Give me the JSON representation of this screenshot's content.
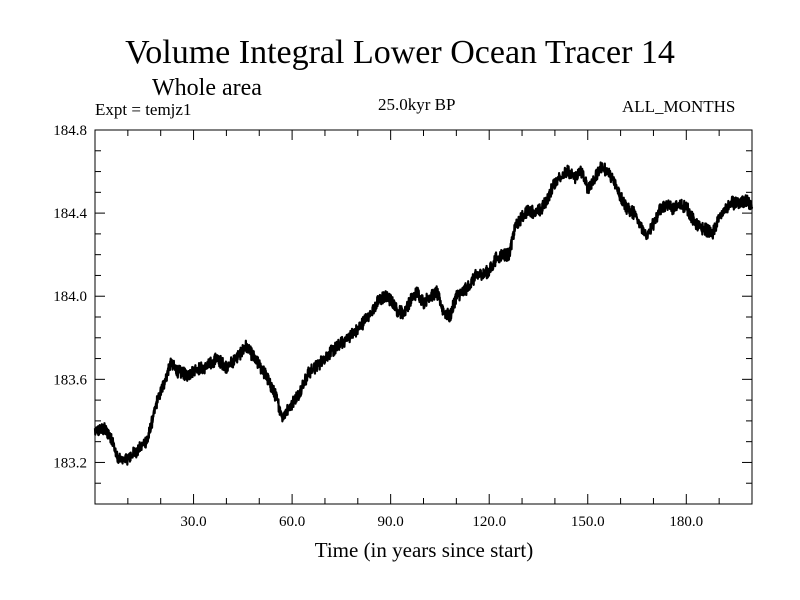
{
  "chart_data": {
    "type": "line",
    "title": "Volume Integral Lower Ocean Tracer 14",
    "subtitle": "Whole area",
    "expt_label": "Expt = temjz1",
    "period_label": "25.0kyr BP",
    "months_label": "ALL_MONTHS",
    "xlabel": "Time (in years since start)",
    "ylabel": "",
    "xlim": [
      0,
      200
    ],
    "ylim": [
      183.0,
      184.8
    ],
    "xticks": [
      30,
      60,
      90,
      120,
      150,
      180
    ],
    "xtick_labels": [
      "30.0",
      "60.0",
      "90.0",
      "120.0",
      "150.0",
      "180.0"
    ],
    "yticks": [
      183.2,
      183.6,
      184.0,
      184.4,
      184.8
    ],
    "ytick_labels": [
      "183.2",
      "183.6",
      "184.0",
      "184.4",
      "184.8"
    ],
    "grid": false,
    "series": [
      {
        "name": "tracer14",
        "x": [
          0,
          3,
          5,
          7,
          10,
          13,
          16,
          19,
          21,
          23,
          25,
          28,
          31,
          34,
          37,
          40,
          43,
          46,
          49,
          52,
          55,
          57,
          59,
          62,
          65,
          68,
          71,
          74,
          77,
          80,
          83,
          86,
          88,
          90,
          92,
          94,
          96,
          98,
          100,
          102,
          104,
          106,
          108,
          110,
          112,
          114,
          116,
          118,
          120,
          122,
          124,
          126,
          128,
          130,
          132,
          134,
          136,
          138,
          140,
          142,
          144,
          146,
          148,
          150,
          152,
          154,
          156,
          158,
          160,
          162,
          164,
          166,
          168,
          170,
          172,
          174,
          176,
          178,
          180,
          182,
          184,
          186,
          188,
          190,
          192,
          194,
          196,
          198,
          200
        ],
        "values": [
          183.35,
          183.36,
          183.32,
          183.21,
          183.22,
          183.26,
          183.31,
          183.5,
          183.58,
          183.68,
          183.64,
          183.62,
          183.65,
          183.66,
          183.7,
          183.66,
          183.7,
          183.76,
          183.69,
          183.62,
          183.52,
          183.42,
          183.46,
          183.53,
          183.63,
          183.67,
          183.72,
          183.76,
          183.8,
          183.84,
          183.9,
          183.97,
          184.0,
          183.98,
          183.93,
          183.92,
          183.98,
          184.02,
          183.97,
          184.0,
          184.02,
          183.93,
          183.9,
          184.0,
          184.02,
          184.05,
          184.1,
          184.11,
          184.12,
          184.18,
          184.2,
          184.2,
          184.34,
          184.38,
          184.42,
          184.4,
          184.42,
          184.48,
          184.55,
          184.58,
          184.6,
          184.57,
          184.6,
          184.52,
          184.56,
          184.62,
          184.6,
          184.55,
          184.48,
          184.42,
          184.4,
          184.35,
          184.28,
          184.35,
          184.42,
          184.44,
          184.42,
          184.44,
          184.43,
          184.37,
          184.33,
          184.32,
          184.3,
          184.38,
          184.42,
          184.45,
          184.44,
          184.46,
          184.44
        ]
      }
    ]
  }
}
